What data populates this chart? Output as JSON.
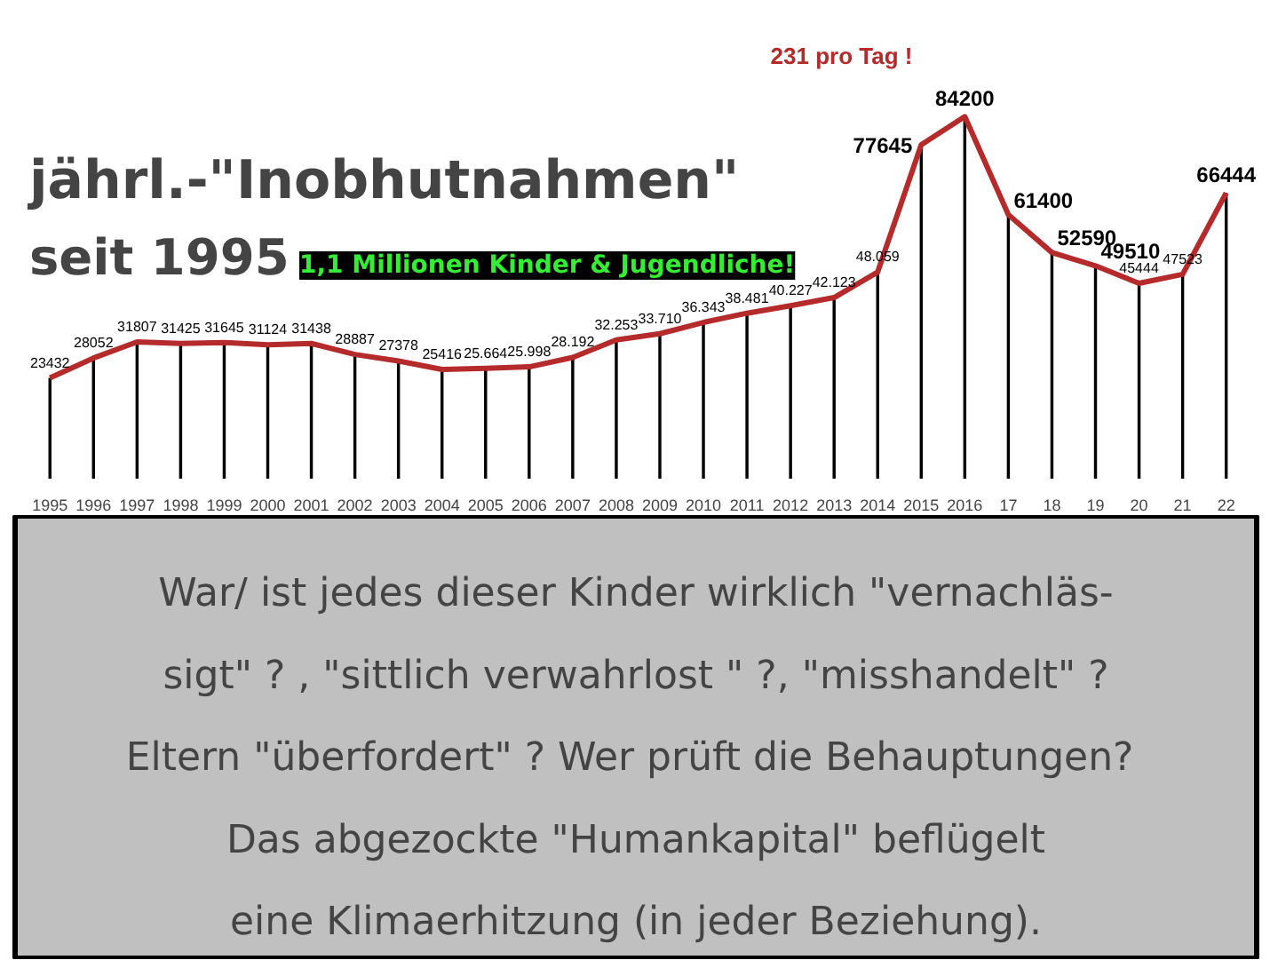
{
  "chart_data": {
    "type": "line",
    "title": "jährl.-\"Inobhutnahmen\"",
    "subtitle": "seit 1995",
    "categories": [
      "1995",
      "1996",
      "1997",
      "1998",
      "1999",
      "2000",
      "2001",
      "2002",
      "2003",
      "2004",
      "2005",
      "2006",
      "2007",
      "2008",
      "2009",
      "2010",
      "2011",
      "2012",
      "2013",
      "2014",
      "2015",
      "2016",
      "17",
      "18",
      "19",
      "20",
      "21",
      "22"
    ],
    "series": [
      {
        "type": "bar",
        "color": "#000000",
        "values": [
          23432,
          28052,
          31807,
          31425,
          31645,
          31124,
          31438,
          28887,
          27378,
          25416,
          25664,
          25998,
          28192,
          32253,
          33710,
          36343,
          38481,
          40227,
          42123,
          48059,
          77645,
          84200,
          61400,
          52590,
          49510,
          45444,
          47523,
          66444
        ]
      },
      {
        "color": "#b52a2a",
        "values": [
          23432,
          28052,
          31807,
          31425,
          31645,
          31124,
          31438,
          28887,
          27378,
          25416,
          25664,
          25998,
          28192,
          32253,
          33710,
          36343,
          38481,
          40227,
          42123,
          48059,
          77645,
          84200,
          61400,
          52590,
          49510,
          45444,
          47523,
          66444
        ],
        "value_labels": [
          "23432",
          "28052",
          "31807",
          "31425",
          "31645",
          "31124",
          "31438",
          "28887",
          "27378",
          "25416",
          "25.664",
          "25.998",
          "28.192",
          "32.253",
          "33.710",
          "36.343",
          "38.481",
          "40.227",
          "42.123",
          "48.059",
          "77645",
          "84200",
          "61400",
          "52590",
          "49510",
          "45444",
          "47523",
          "66444"
        ]
      }
    ],
    "annotations": [
      "1,1 Millionen Kinder & Jugendliche!",
      "231 pro Tag !",
      "War/ ist jedes dieser Kinder wirklich \"vernachläs-",
      "sigt\" ? , \"sittlich verwahrlost \" ?, \"misshandelt\" ?",
      "Eltern \"überfordert\" ?  Wer prüft die Behauptungen?",
      "Das abgezockte \"Humankapital\" beflügelt",
      "eine Klimaerhitzung (in jeder Beziehung)."
    ],
    "grid": false
  }
}
